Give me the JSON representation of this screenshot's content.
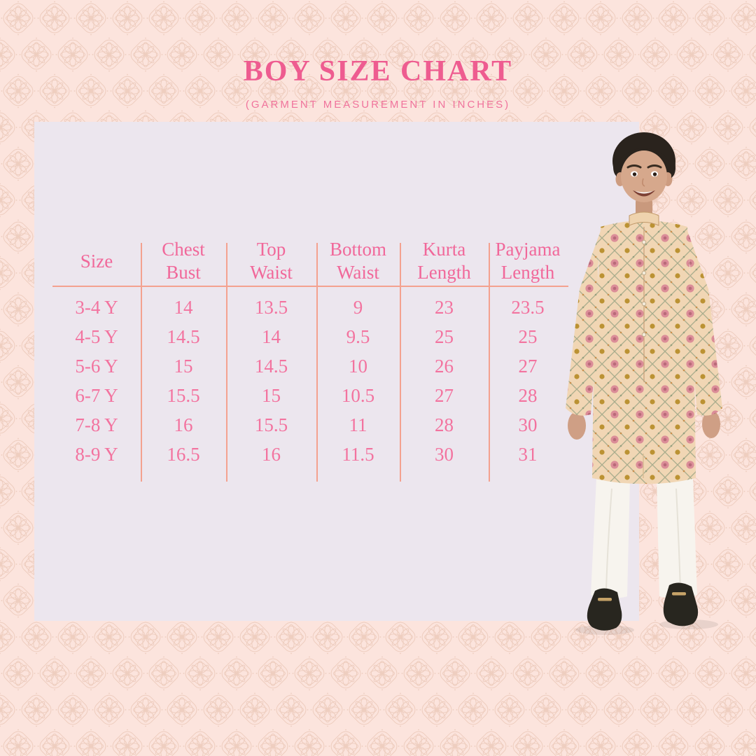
{
  "page": {
    "title": "BOY SIZE CHART",
    "subtitle": "(GARMENT MEASUREMENT IN INCHES)"
  },
  "colors": {
    "background": "#fce4dd",
    "pattern_line": "#eccabb",
    "panel": "#ece6ee",
    "title_pink": "#ee5c90",
    "subtitle_pink": "#f0739c",
    "table_text_pink": "#f1689a",
    "table_line_salmon": "#f4a28f"
  },
  "size_chart": {
    "columns": [
      {
        "l1": "Size",
        "l2": ""
      },
      {
        "l1": "Chest",
        "l2": "Bust"
      },
      {
        "l1": "Top",
        "l2": "Waist"
      },
      {
        "l1": "Bottom",
        "l2": "Waist"
      },
      {
        "l1": "Kurta",
        "l2": "Length"
      },
      {
        "l1": "Payjama",
        "l2": "Length"
      }
    ],
    "rows": [
      {
        "cells": [
          "3-4 Y",
          "14",
          "13.5",
          "9",
          "23",
          "23.5"
        ]
      },
      {
        "cells": [
          "4-5 Y",
          "14.5",
          "14",
          "9.5",
          "25",
          "25"
        ]
      },
      {
        "cells": [
          "5-6 Y",
          "15",
          "14.5",
          "10",
          "26",
          "27"
        ]
      },
      {
        "cells": [
          "6-7 Y",
          "15.5",
          "15",
          "10.5",
          "27",
          "28"
        ]
      },
      {
        "cells": [
          "7-8 Y",
          "16",
          "15.5",
          "11",
          "28",
          "30"
        ]
      },
      {
        "cells": [
          "8-9 Y",
          "16.5",
          "16",
          "11.5",
          "30",
          "31"
        ]
      }
    ]
  },
  "figure": {
    "alt": "Boy wearing floral printed kurta with white payjama and black loafers"
  },
  "chart_data": {
    "type": "table",
    "title": "BOY SIZE CHART",
    "subtitle": "(GARMENT MEASUREMENT IN INCHES)",
    "units": "inches",
    "columns": [
      "Size",
      "Chest Bust",
      "Top Waist",
      "Bottom Waist",
      "Kurta Length",
      "Payjama Length"
    ],
    "rows": [
      [
        "3-4 Y",
        14,
        13.5,
        9,
        23,
        23.5
      ],
      [
        "4-5 Y",
        14.5,
        14,
        9.5,
        25,
        25
      ],
      [
        "5-6 Y",
        15,
        14.5,
        10,
        26,
        27
      ],
      [
        "6-7 Y",
        15.5,
        15,
        10.5,
        27,
        28
      ],
      [
        "7-8 Y",
        16,
        15.5,
        11,
        28,
        30
      ],
      [
        "8-9 Y",
        16.5,
        16,
        11.5,
        30,
        31
      ]
    ]
  }
}
